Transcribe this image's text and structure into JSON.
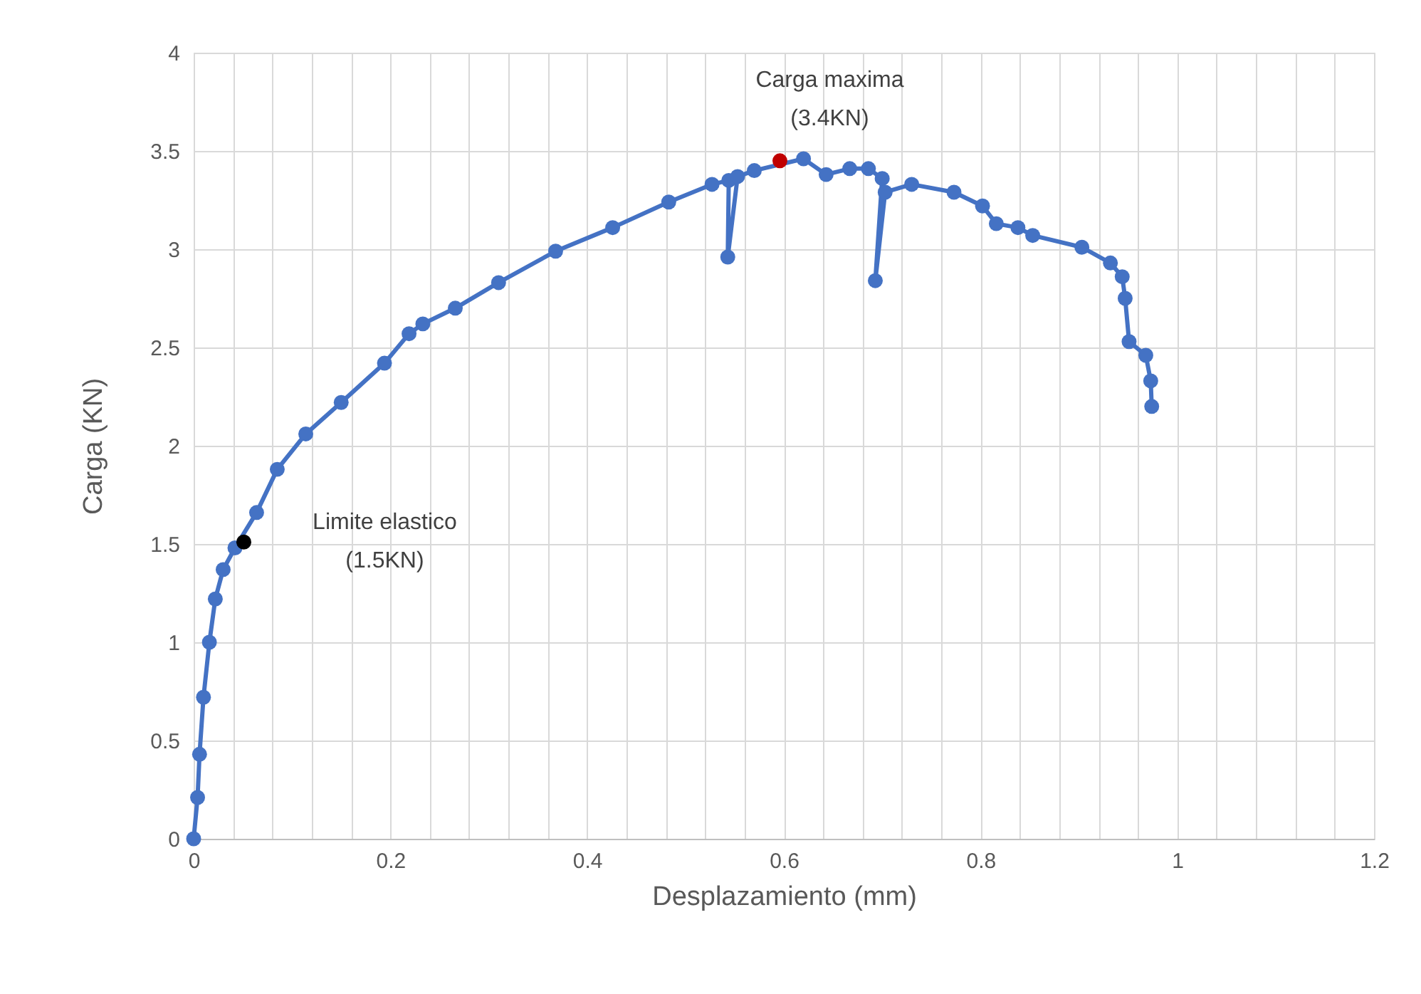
{
  "chart_data": {
    "type": "scatter",
    "xlabel": "Desplazamiento (mm)",
    "ylabel": "Carga (KN)",
    "xlim": [
      0,
      1.2
    ],
    "ylim": [
      0,
      4
    ],
    "xticks": [
      0,
      {
        "value": 0.04,
        "label": null
      },
      {
        "value": 0.08,
        "label": null
      },
      {
        "value": 0.12,
        "label": null
      },
      {
        "value": 0.16,
        "label": null
      },
      0.2,
      {
        "value": 0.24,
        "label": null
      },
      {
        "value": 0.28,
        "label": null
      },
      {
        "value": 0.32,
        "label": null
      },
      {
        "value": 0.36,
        "label": null
      },
      0.4,
      {
        "value": 0.44,
        "label": null
      },
      {
        "value": 0.48,
        "label": null
      },
      {
        "value": 0.52,
        "label": null
      },
      {
        "value": 0.56,
        "label": null
      },
      0.6,
      {
        "value": 0.64,
        "label": null
      },
      {
        "value": 0.68,
        "label": null
      },
      {
        "value": 0.72,
        "label": null
      },
      {
        "value": 0.76,
        "label": null
      },
      0.8,
      {
        "value": 0.84,
        "label": null
      },
      {
        "value": 0.88,
        "label": null
      },
      {
        "value": 0.92,
        "label": null
      },
      {
        "value": 0.96,
        "label": null
      },
      1,
      {
        "value": 1.04,
        "label": null
      },
      {
        "value": 1.08,
        "label": null
      },
      {
        "value": 1.12,
        "label": null
      },
      {
        "value": 1.16,
        "label": null
      },
      1.2
    ],
    "yticks": [
      0,
      0.5,
      1,
      1.5,
      2,
      2.5,
      3,
      3.5,
      4
    ],
    "grid": true,
    "marker": "circle",
    "series": [
      {
        "type": "line",
        "color": "#4472c4",
        "x": [
          0,
          0.004,
          0.006,
          0.01,
          0.016,
          0.022,
          0.03,
          0.042,
          0.064,
          0.085,
          0.114,
          0.15,
          0.194,
          0.219,
          0.233,
          0.266,
          0.31,
          0.368,
          0.426,
          0.483,
          0.527,
          0.544,
          0.543,
          0.553,
          0.57,
          0.62,
          0.643,
          0.667,
          0.686,
          0.7,
          0.693,
          0.703,
          0.73,
          0.773,
          0.802,
          0.816,
          0.838,
          0.853,
          0.903,
          0.932,
          0.944,
          0.947,
          0.951,
          0.968,
          0.973,
          0.974
        ],
        "values": [
          0,
          0.21,
          0.43,
          0.72,
          1.0,
          1.22,
          1.37,
          1.48,
          1.66,
          1.88,
          2.06,
          2.22,
          2.42,
          2.57,
          2.62,
          2.7,
          2.83,
          2.99,
          3.11,
          3.24,
          3.33,
          3.35,
          2.96,
          3.37,
          3.4,
          3.46,
          3.38,
          3.41,
          3.41,
          3.36,
          2.84,
          3.29,
          3.33,
          3.29,
          3.22,
          3.13,
          3.11,
          3.07,
          3.01,
          2.93,
          2.86,
          2.75,
          2.53,
          2.46,
          2.33,
          2.2
        ]
      },
      {
        "color": "#000000",
        "x": [
          0.051
        ],
        "values": [
          1.51
        ]
      },
      {
        "color": "#c00000",
        "x": [
          0.596
        ],
        "values": [
          3.45
        ]
      }
    ],
    "annotations": [
      {
        "text": "Limite elastico\n(1.5KN)",
        "x": 0.051,
        "y": 1.51
      },
      {
        "text": "Carga maxima\n(3.4KN)",
        "x": 0.596,
        "y": 3.45
      }
    ]
  }
}
